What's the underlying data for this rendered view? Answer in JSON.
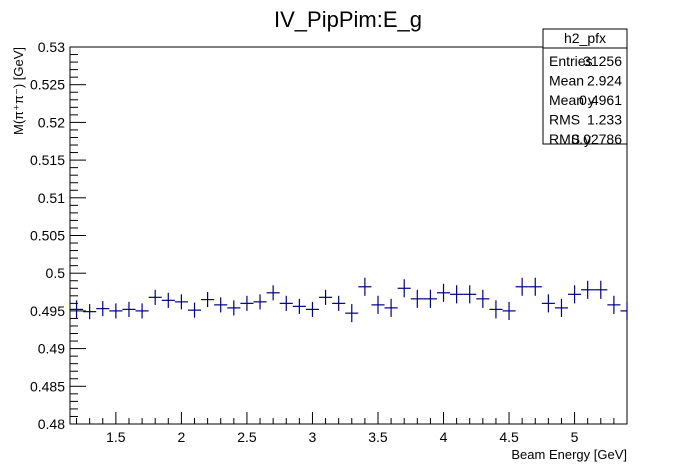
{
  "chart_data": {
    "type": "scatter",
    "title": "IV_PipPim:E_g",
    "xlabel": "Beam Energy [GeV]",
    "ylabel": "M(π⁺π⁻) [GeV]",
    "xlim": [
      1.15,
      5.4
    ],
    "ylim": [
      0.48,
      0.53
    ],
    "x_ticks": [
      "1.5",
      "2",
      "2.5",
      "3",
      "3.5",
      "4",
      "4.5",
      "5"
    ],
    "y_ticks": [
      "0.48",
      "0.485",
      "0.49",
      "0.495",
      "0.5",
      "0.505",
      "0.51",
      "0.515",
      "0.52",
      "0.525",
      "0.53"
    ],
    "bin_width": 0.1,
    "x": [
      1.2,
      1.3,
      1.4,
      1.5,
      1.6,
      1.7,
      1.8,
      1.9,
      2.0,
      2.1,
      2.2,
      2.3,
      2.4,
      2.5,
      2.6,
      2.7,
      2.8,
      2.9,
      3.0,
      3.1,
      3.2,
      3.3,
      3.4,
      3.5,
      3.6,
      3.7,
      3.8,
      3.9,
      4.0,
      4.1,
      4.2,
      4.3,
      4.4,
      4.5,
      4.6,
      4.7,
      4.8,
      4.9,
      5.0,
      5.1,
      5.2,
      5.3,
      5.4
    ],
    "y": [
      0.4952,
      0.4949,
      0.4953,
      0.495,
      0.4952,
      0.495,
      0.4968,
      0.4964,
      0.4962,
      0.4951,
      0.4965,
      0.4958,
      0.4954,
      0.496,
      0.4962,
      0.4974,
      0.496,
      0.4956,
      0.4952,
      0.4968,
      0.496,
      0.4947,
      0.4982,
      0.4958,
      0.4954,
      0.498,
      0.4966,
      0.4966,
      0.4974,
      0.4972,
      0.4972,
      0.4966,
      0.4952,
      0.495,
      0.4982,
      0.4982,
      0.496,
      0.4954,
      0.4972,
      0.4978,
      0.4978,
      0.4958,
      0.495
    ],
    "y_err": [
      0.0012,
      0.001,
      0.001,
      0.001,
      0.001,
      0.001,
      0.001,
      0.001,
      0.001,
      0.001,
      0.001,
      0.001,
      0.001,
      0.001,
      0.001,
      0.001,
      0.001,
      0.001,
      0.001,
      0.001,
      0.001,
      0.0012,
      0.0012,
      0.0012,
      0.0012,
      0.0012,
      0.0012,
      0.0012,
      0.0012,
      0.0012,
      0.0012,
      0.0012,
      0.0012,
      0.0012,
      0.0012,
      0.0012,
      0.0012,
      0.0012,
      0.0012,
      0.0012,
      0.0012,
      0.0012,
      0.0012
    ],
    "marker_color": "#000080",
    "stats": {
      "name": "h2_pfx",
      "rows": [
        {
          "label": "Entries",
          "value": "31256"
        },
        {
          "label": "Mean",
          "value": "2.924"
        },
        {
          "label": "Mean y",
          "value": "0.4961"
        },
        {
          "label": "RMS",
          "value": "1.233"
        },
        {
          "label": "RMS y",
          "value": "0.02786"
        }
      ]
    }
  }
}
